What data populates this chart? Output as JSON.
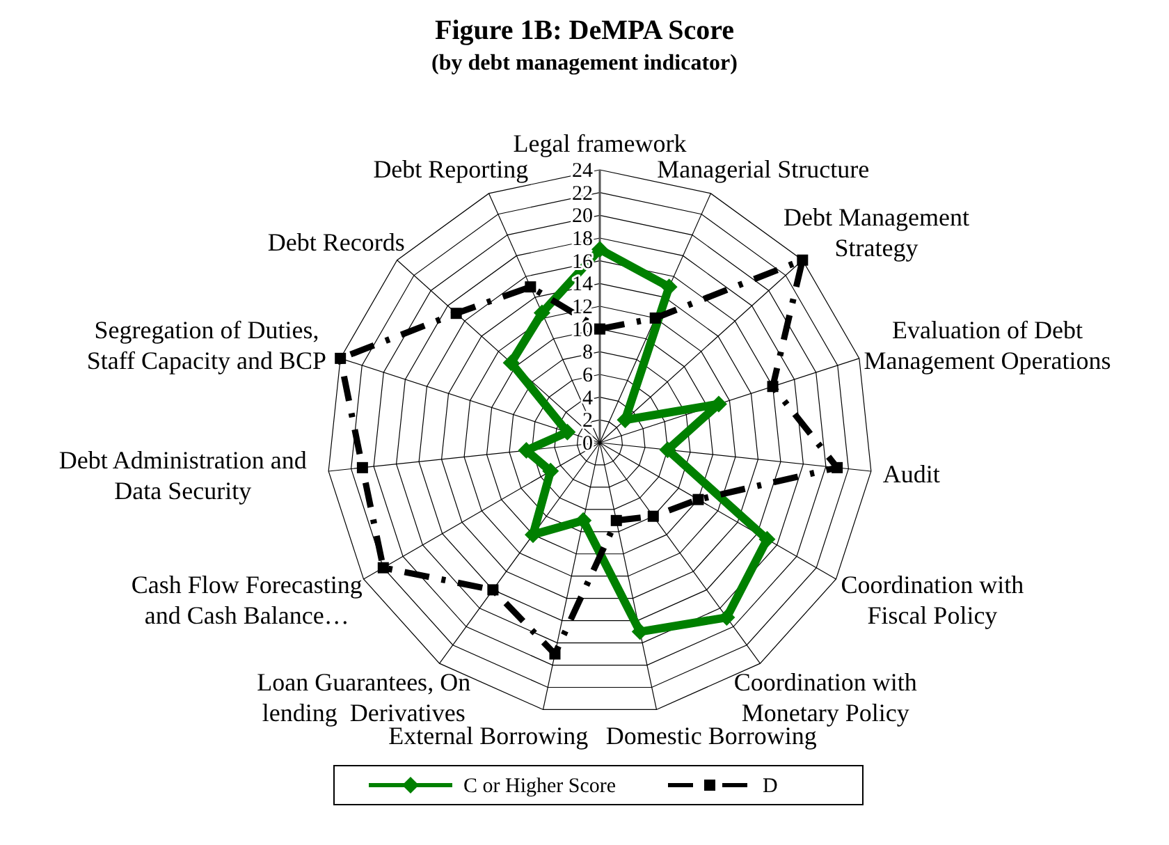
{
  "chart_data": {
    "type": "radar",
    "title": "Figure 1B: DeMPA Score",
    "subtitle": "(by debt management indicator)",
    "categories": [
      "Legal framework",
      "Managerial Structure",
      "Debt Management Strategy",
      "Evaluation of Debt Management Operations",
      "Audit",
      "Coordination with Fiscal Policy",
      "Coordination with Monetary Policy",
      "Domestic Borrowing",
      "External Borrowing",
      "Loan Guarantees, On lending  Derivatives",
      "Cash Flow Forecasting and Cash Balance…",
      "Debt Administration and Data Security",
      "Segregation of Duties, Staff Capacity and BCP",
      "Debt Records",
      "Debt Reporting"
    ],
    "series": [
      {
        "name": "C or Higher Score",
        "color": "#008000",
        "marker": "diamond",
        "line_style": "solid",
        "values": [
          17,
          15,
          3,
          11,
          6,
          17,
          19,
          17,
          7,
          10,
          5,
          6.5,
          3,
          10.5,
          12.5
        ]
      },
      {
        "name": "D",
        "color": "#000000",
        "marker": "square",
        "line_style": "dashed",
        "values": [
          10,
          12,
          24,
          16,
          21,
          10,
          8,
          7,
          19,
          16,
          22,
          21,
          24,
          17,
          15
        ]
      }
    ],
    "ylim": [
      0,
      24
    ],
    "yticks": [
      0,
      2,
      4,
      6,
      8,
      10,
      12,
      14,
      16,
      18,
      20,
      22,
      24
    ],
    "grid": true,
    "legend": "bottom"
  }
}
